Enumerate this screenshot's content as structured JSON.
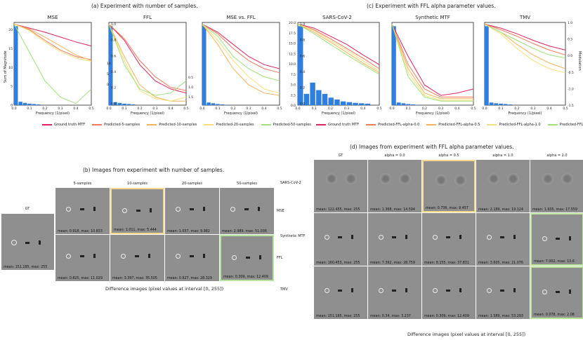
{
  "sections": {
    "a_title": "(a) Experiment with number of samples.",
    "c_title": "(c) Experiment with FFL alpha parameter values.",
    "b_title": "(b) Images from experiment with number of samples.",
    "d_title": "(d) Images from experiment with FFL alpha parameter values."
  },
  "axes": {
    "xlabel": "Frequency (1/pixel)",
    "ylabel_left": "Sum of Magnitude",
    "ylabel_right": "Modulation"
  },
  "chart_data": [
    {
      "type": "line",
      "title": "MSE",
      "xlim": [
        0,
        0.5
      ],
      "ylim": [
        0,
        22
      ],
      "x_ticks": [
        "0.0",
        "0.1",
        "0.2",
        "0.3",
        "0.4",
        "0.5"
      ],
      "y_ticks": [
        "0",
        "5",
        "10",
        "15",
        "20"
      ],
      "series": [
        {
          "name": "Ground truth MTF",
          "values": [
            1.0,
            0.95,
            0.9,
            0.84,
            0.78,
            0.73
          ]
        },
        {
          "name": "Predicted-5-samples",
          "values": [
            1.0,
            0.93,
            0.8,
            0.68,
            0.6,
            0.56
          ]
        },
        {
          "name": "Predicted-10-samples",
          "values": [
            1.0,
            0.94,
            0.84,
            0.73,
            0.62,
            0.55
          ]
        },
        {
          "name": "Predicted-20-samples",
          "values": [
            1.0,
            0.92,
            0.78,
            0.66,
            0.58,
            0.54
          ]
        },
        {
          "name": "Predicted-50-samples",
          "values": [
            1.0,
            0.65,
            0.3,
            0.1,
            0.02,
            0.2
          ]
        }
      ],
      "bars": [
        21,
        0.9,
        0.6,
        0.4,
        0.3,
        0.2
      ]
    },
    {
      "type": "line",
      "title": "FFL",
      "xlim": [
        0,
        0.5
      ],
      "ylim": [
        0,
        1.0
      ],
      "y_ticks_right": [
        "1.0",
        "0.8",
        "0.6",
        "0.4",
        "0.2",
        "0.0"
      ],
      "series": [
        {
          "name": "Ground truth MTF",
          "values": [
            1.0,
            0.8,
            0.5,
            0.3,
            0.2,
            0.15
          ]
        },
        {
          "name": "Predicted-5-samples",
          "values": [
            1.0,
            0.82,
            0.55,
            0.35,
            0.22,
            0.18
          ]
        },
        {
          "name": "Predicted-10-samples",
          "values": [
            1.0,
            0.6,
            0.25,
            0.1,
            0.05,
            0.05
          ]
        },
        {
          "name": "Predicted-20-samples",
          "values": [
            1.0,
            0.55,
            0.18,
            0.08,
            0.05,
            0.1
          ]
        },
        {
          "name": "Predicted-50-samples",
          "values": [
            1.0,
            0.5,
            0.2,
            0.12,
            0.15,
            0.3
          ]
        }
      ],
      "bars": [
        21,
        0.8,
        0.6,
        0.4,
        0.3,
        0.2
      ]
    },
    {
      "type": "line",
      "title": "MSE vs. FFL",
      "xlim": [
        0,
        0.5
      ],
      "ylim": [
        0,
        1.0
      ],
      "series": [
        {
          "name": "Ground truth MTF",
          "values": [
            1.0,
            0.9,
            0.75,
            0.6,
            0.5,
            0.45
          ]
        },
        {
          "name": "Predicted-5-samples",
          "values": [
            1.0,
            0.88,
            0.7,
            0.55,
            0.45,
            0.4
          ]
        },
        {
          "name": "Predicted-10-samples",
          "values": [
            1.0,
            0.75,
            0.45,
            0.25,
            0.15,
            0.12
          ]
        },
        {
          "name": "Predicted-20-samples",
          "values": [
            1.0,
            0.8,
            0.55,
            0.35,
            0.2,
            0.15
          ]
        },
        {
          "name": "Predicted-50-samples",
          "values": [
            1.0,
            0.85,
            0.6,
            0.45,
            0.35,
            0.3
          ]
        }
      ],
      "bars": [
        21,
        0.7,
        0.5,
        0.3,
        0.2,
        0.1
      ]
    },
    {
      "type": "line",
      "title": "SARS-CoV-2",
      "xlim": [
        0,
        0.5
      ],
      "ylim": [
        0,
        22
      ],
      "y_ticks_right": [
        "1.0",
        "0.8",
        "0.6",
        "0.4",
        "0.2",
        "0.0"
      ],
      "series": [
        {
          "name": "Ground truth MTF",
          "values": [
            1.0,
            0.95,
            0.85,
            0.75,
            0.62,
            0.5
          ]
        },
        {
          "name": "Predicted-FFL-alpha-0.0",
          "values": [
            1.0,
            0.93,
            0.82,
            0.7,
            0.58,
            0.45
          ]
        },
        {
          "name": "Predicted-FFL-alpha-0.5",
          "values": [
            1.0,
            0.9,
            0.78,
            0.65,
            0.52,
            0.4
          ]
        },
        {
          "name": "Predicted-FFL-alpha-1.0",
          "values": [
            1.0,
            0.92,
            0.8,
            0.68,
            0.55,
            0.42
          ]
        },
        {
          "name": "Predicted-FFL-alpha-2.0",
          "values": [
            1.0,
            0.88,
            0.75,
            0.62,
            0.5,
            0.38
          ]
        }
      ],
      "bars": [
        21,
        3,
        6,
        4,
        3,
        2,
        1.5,
        1,
        0.8,
        0.6,
        0.5,
        0.4
      ]
    },
    {
      "type": "line",
      "title": "Synthetic MTF",
      "xlim": [
        0,
        0.5
      ],
      "ylim": [
        0,
        1.0
      ],
      "series": [
        {
          "name": "Ground truth MTF",
          "values": [
            1.0,
            0.6,
            0.25,
            0.12,
            0.15,
            0.2
          ]
        },
        {
          "name": "Predicted-FFL-alpha-0.0",
          "values": [
            1.0,
            0.5,
            0.2,
            0.1,
            0.1,
            0.1
          ]
        },
        {
          "name": "Predicted-FFL-alpha-0.5",
          "values": [
            1.0,
            0.45,
            0.15,
            0.08,
            0.08,
            0.08
          ]
        },
        {
          "name": "Predicted-FFL-alpha-1.0",
          "values": [
            1.0,
            0.4,
            0.12,
            0.06,
            0.06,
            0.06
          ]
        },
        {
          "name": "Predicted-FFL-alpha-2.0",
          "values": [
            1.0,
            0.35,
            0.1,
            0.05,
            0.05,
            0.05
          ]
        }
      ],
      "bars": [
        21,
        0.7,
        0.5,
        0.3,
        0.2,
        0.1
      ]
    },
    {
      "type": "line",
      "title": "TMV",
      "xlim": [
        0,
        0.5
      ],
      "ylim": [
        0,
        1.0
      ],
      "series": [
        {
          "name": "Ground truth MTF",
          "values": [
            1.0,
            0.95,
            0.88,
            0.8,
            0.73,
            0.68
          ]
        },
        {
          "name": "Predicted-FFL-alpha-0.0",
          "values": [
            1.0,
            0.93,
            0.85,
            0.76,
            0.68,
            0.62
          ]
        },
        {
          "name": "Predicted-FFL-alpha-0.5",
          "values": [
            1.0,
            0.9,
            0.75,
            0.62,
            0.52,
            0.45
          ]
        },
        {
          "name": "Predicted-FFL-alpha-1.0",
          "values": [
            1.0,
            0.88,
            0.7,
            0.55,
            0.45,
            0.4
          ]
        },
        {
          "name": "Predicted-FFL-alpha-2.0",
          "values": [
            1.0,
            0.9,
            0.8,
            0.7,
            0.62,
            0.58
          ]
        }
      ],
      "bars": [
        21,
        0.7,
        0.5,
        0.4,
        0.3,
        0.2
      ]
    }
  ],
  "legend_a": [
    {
      "label": "Ground truth MTF",
      "color": "#e0245e"
    },
    {
      "label": "Predicted-5-samples",
      "color": "#f07a5a"
    },
    {
      "label": "Predicted-10-samples",
      "color": "#f5b35a"
    },
    {
      "label": "Predicted-20-samples",
      "color": "#f5e17a"
    },
    {
      "label": "Predicted-50-samples",
      "color": "#9fe07a"
    }
  ],
  "legend_c": [
    {
      "label": "Ground truth MTF",
      "color": "#e0245e"
    },
    {
      "label": "Predicted-FFL-alpha-0.0",
      "color": "#f07a5a"
    },
    {
      "label": "Predicted-FFL-alpha-0.5",
      "color": "#f5b35a"
    },
    {
      "label": "Predicted-FFL-alpha-1.0",
      "color": "#f5e17a"
    },
    {
      "label": "Predicted-FFL-alpha-2.0",
      "color": "#9fe07a"
    }
  ],
  "extra_ticks": {
    "a_mid_right": [
      "10",
      "5",
      "0"
    ],
    "a_ffl_right": [
      "0.5",
      "1.0",
      "1.5"
    ],
    "c_left": [
      "20.0",
      "17.5",
      "15.0",
      "12.5",
      "10.0",
      "7.5",
      "5.0",
      "2.5",
      "0.0"
    ],
    "c_right": [
      "1.0",
      "0.5",
      "0.0",
      "-0.5",
      "-1.0",
      "-1.5"
    ]
  },
  "panel_b": {
    "gt_label": "GT",
    "gt_caption": "mean: 151.185, max: 255",
    "columns": [
      "5-samples",
      "10-samples",
      "20-samples",
      "50-samples"
    ],
    "rows": [
      {
        "label": "MSE",
        "captions": [
          "mean: 0.918, max: 10.833",
          "mean: 1.011, max: 5.444",
          "mean: 1.037, max: 9.982",
          "mean: 2.989, max: 51.036"
        ]
      },
      {
        "label": "FFL",
        "captions": [
          "mean: 0.825, max: 11.029",
          "mean: 3.397, max: 35.505",
          "mean: 0.927, max: 28.329",
          "mean: 0.309, max: 12.409"
        ]
      }
    ],
    "footer": "Difference images (pixel values at interval [0, 255])"
  },
  "panel_d": {
    "columns": [
      "GT",
      "alpha = 0.0",
      "alpha = 0.5",
      "alpha = 1.0",
      "alpha = 2.0"
    ],
    "rows": [
      {
        "label": "SARS-CoV-2",
        "captions": [
          "mean: 122.455, max: 255",
          "mean: 1.368, max: 14.594",
          "mean: 0.736, max: 9.457",
          "mean: 2.189, max: 19.124",
          "mean: 1.935, max: 17.559"
        ]
      },
      {
        "label": "Synthetic MTF",
        "captions": [
          "mean: 160.453, max: 255",
          "mean: 7.392, max: 28.759",
          "mean: 8.155, max: 37.831",
          "mean: 3.605, max: 21.076",
          "mean: 7.002, max: 13.6"
        ]
      },
      {
        "label": "TMV",
        "captions": [
          "mean: 151.185, max: 255",
          "mean: 0.34, max: 3.237",
          "mean: 0.309, max: 12.409",
          "mean: 1.589, max: 53.293",
          "mean: 0.078, max: 2.08"
        ]
      }
    ],
    "footer": "Difference images (pixel values at interval [0, 255])"
  },
  "colors": {
    "bar": "#2f7fe0",
    "frame": "#222222"
  }
}
